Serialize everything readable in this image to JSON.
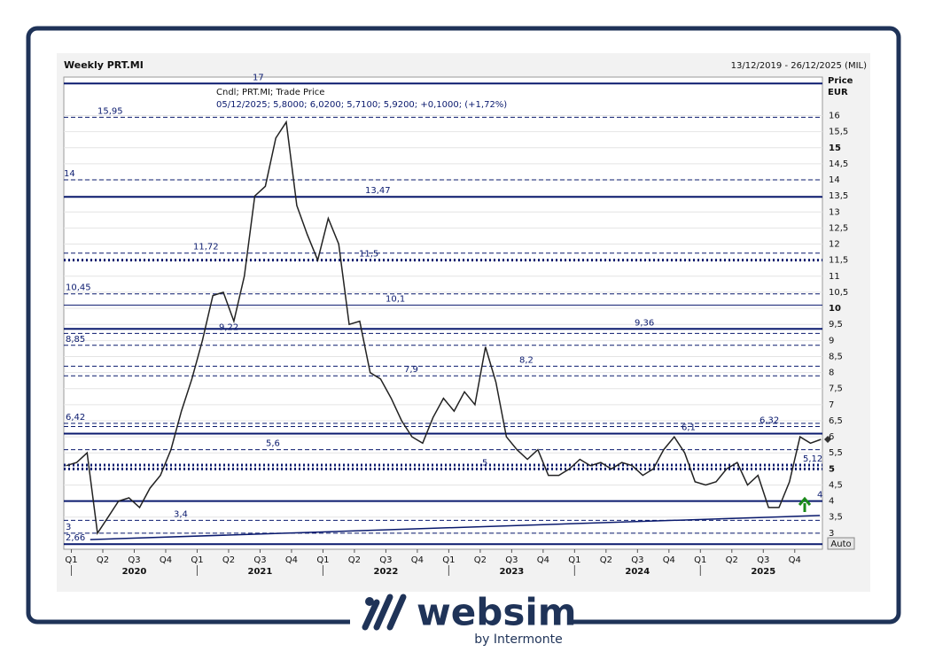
{
  "chart_data": {
    "type": "line",
    "title": "Weekly PRT.MI",
    "period": "13/12/2019 - 26/12/2025 (MIL)",
    "axis_title": "Price",
    "axis_unit": "EUR",
    "legend_lines": [
      "Cndl; PRT.MI; Trade Price",
      "05/12/2025; 5,8000; 6,0200; 5,7100; 5,9200; +0,1000; (+1,72%)"
    ],
    "auto_button": "Auto",
    "xlim": [
      2019.94,
      2025.97
    ],
    "ylim": [
      2.5,
      17.2
    ],
    "xticks": [
      {
        "value": 2020.0,
        "label": "Q1"
      },
      {
        "value": 2020.25,
        "label": "Q2"
      },
      {
        "value": 2020.5,
        "label": "Q3"
      },
      {
        "value": 2020.75,
        "label": "Q4"
      },
      {
        "value": 2021.0,
        "label": "Q1"
      },
      {
        "value": 2021.25,
        "label": "Q2"
      },
      {
        "value": 2021.5,
        "label": "Q3"
      },
      {
        "value": 2021.75,
        "label": "Q4"
      },
      {
        "value": 2022.0,
        "label": "Q1"
      },
      {
        "value": 2022.25,
        "label": "Q2"
      },
      {
        "value": 2022.5,
        "label": "Q3"
      },
      {
        "value": 2022.75,
        "label": "Q4"
      },
      {
        "value": 2023.0,
        "label": "Q1"
      },
      {
        "value": 2023.25,
        "label": "Q2"
      },
      {
        "value": 2023.5,
        "label": "Q3"
      },
      {
        "value": 2023.75,
        "label": "Q4"
      },
      {
        "value": 2024.0,
        "label": "Q1"
      },
      {
        "value": 2024.25,
        "label": "Q2"
      },
      {
        "value": 2024.5,
        "label": "Q3"
      },
      {
        "value": 2024.75,
        "label": "Q4"
      },
      {
        "value": 2025.0,
        "label": "Q1"
      },
      {
        "value": 2025.25,
        "label": "Q2"
      },
      {
        "value": 2025.5,
        "label": "Q3"
      },
      {
        "value": 2025.75,
        "label": "Q4"
      }
    ],
    "years": [
      2020,
      2021,
      2022,
      2023,
      2024,
      2025
    ],
    "yticks": [
      3,
      {
        "value": 3.5,
        "label": "3,5"
      },
      4,
      {
        "value": 4.5,
        "label": "4,5"
      },
      5,
      {
        "value": 5.5,
        "label": "5,5"
      },
      6,
      {
        "value": 6.5,
        "label": "6,5"
      },
      7,
      {
        "value": 7.5,
        "label": "7,5"
      },
      8,
      {
        "value": 8.5,
        "label": "8,5"
      },
      9,
      {
        "value": 9.5,
        "label": "9,5"
      },
      10,
      {
        "value": 10.5,
        "label": "10,5"
      },
      11,
      {
        "value": 11.5,
        "label": "11,5"
      },
      12,
      {
        "value": 12.5,
        "label": "12,5"
      },
      13,
      {
        "value": 13.5,
        "label": "13,5"
      },
      14,
      {
        "value": 14.5,
        "label": "14,5"
      },
      15,
      {
        "value": 15.5,
        "label": "15,5"
      },
      16
    ],
    "series": [
      {
        "name": "PRT.MI",
        "color": "#222222",
        "x": [
          2019.958,
          2020.042,
          2020.125,
          2020.208,
          2020.292,
          2020.375,
          2020.458,
          2020.542,
          2020.625,
          2020.708,
          2020.792,
          2020.875,
          2020.958,
          2021.042,
          2021.125,
          2021.208,
          2021.292,
          2021.375,
          2021.458,
          2021.542,
          2021.625,
          2021.708,
          2021.792,
          2021.875,
          2021.958,
          2022.042,
          2022.125,
          2022.208,
          2022.292,
          2022.375,
          2022.458,
          2022.542,
          2022.625,
          2022.708,
          2022.792,
          2022.875,
          2022.958,
          2023.042,
          2023.125,
          2023.208,
          2023.292,
          2023.375,
          2023.458,
          2023.542,
          2023.625,
          2023.708,
          2023.792,
          2023.875,
          2023.958,
          2024.042,
          2024.125,
          2024.208,
          2024.292,
          2024.375,
          2024.458,
          2024.542,
          2024.625,
          2024.708,
          2024.792,
          2024.875,
          2024.958,
          2025.042,
          2025.125,
          2025.208,
          2025.292,
          2025.375,
          2025.458,
          2025.542,
          2025.625,
          2025.708,
          2025.792,
          2025.875,
          2025.958
        ],
        "values": [
          5.1,
          5.2,
          5.5,
          3.0,
          3.5,
          4.0,
          4.1,
          3.8,
          4.4,
          4.8,
          5.6,
          6.8,
          7.8,
          9.0,
          10.4,
          10.5,
          9.6,
          11.0,
          13.5,
          13.8,
          15.3,
          15.8,
          13.2,
          12.3,
          11.5,
          12.8,
          12.0,
          9.5,
          9.6,
          8.0,
          7.8,
          7.2,
          6.5,
          6.0,
          5.8,
          6.6,
          7.2,
          6.8,
          7.4,
          7.0,
          8.8,
          7.7,
          6.0,
          5.6,
          5.3,
          5.6,
          4.8,
          4.8,
          5.0,
          5.3,
          5.1,
          5.2,
          5.0,
          5.2,
          5.1,
          4.8,
          5.0,
          5.6,
          6.0,
          5.5,
          4.6,
          4.5,
          4.6,
          5.0,
          5.2,
          4.5,
          4.8,
          3.8,
          3.8,
          4.6,
          6.0,
          5.8,
          5.92
        ]
      }
    ],
    "trendline": {
      "color": "#0a1a6e",
      "x": [
        2020.15,
        2025.95
      ],
      "values": [
        2.8,
        3.55
      ]
    },
    "last_price": 5.92,
    "levels": [
      {
        "value": 17,
        "label": "17",
        "style": "solid"
      },
      {
        "value": 15.95,
        "label": "15,95",
        "style": "dashed"
      },
      {
        "value": 14,
        "label": "14",
        "style": "dashed"
      },
      {
        "value": 13.47,
        "label": "13,47",
        "style": "solid"
      },
      {
        "value": 11.72,
        "label": "11,72",
        "style": "dashed"
      },
      {
        "value": 11.5,
        "label": "11,5",
        "style": "dotted"
      },
      {
        "value": 10.45,
        "label": "10,45",
        "style": "dashed"
      },
      {
        "value": 10.1,
        "label": "10,1",
        "style": "thin"
      },
      {
        "value": 9.36,
        "label": "9,36",
        "style": "solid"
      },
      {
        "value": 9.22,
        "label": "9,22",
        "style": "dashed"
      },
      {
        "value": 8.85,
        "label": "8,85",
        "style": "dashed"
      },
      {
        "value": 8.2,
        "label": "8,2",
        "style": "dashed"
      },
      {
        "value": 7.9,
        "label": "7,9",
        "style": "dashed"
      },
      {
        "value": 6.42,
        "label": "6,42",
        "style": "dashed"
      },
      {
        "value": 6.32,
        "label": "6,32",
        "style": "dashed"
      },
      {
        "value": 6.1,
        "label": "6,1",
        "style": "solid"
      },
      {
        "value": 5.6,
        "label": "5,6",
        "style": "dashed"
      },
      {
        "value": 5.12,
        "label": "5,12",
        "style": "dotted"
      },
      {
        "value": 5,
        "label": "5",
        "style": "dotted"
      },
      {
        "value": 4,
        "label": "4",
        "style": "solid"
      },
      {
        "value": 3.4,
        "label": "3,4",
        "style": "dashed"
      },
      {
        "value": 3,
        "label": "3",
        "style": "dashed"
      },
      {
        "value": 2.66,
        "label": "2,66",
        "style": "solid"
      }
    ],
    "levels_color": "#0a1a6e"
  },
  "logo": {
    "name": "websim",
    "tagline": "by Intermonte"
  }
}
